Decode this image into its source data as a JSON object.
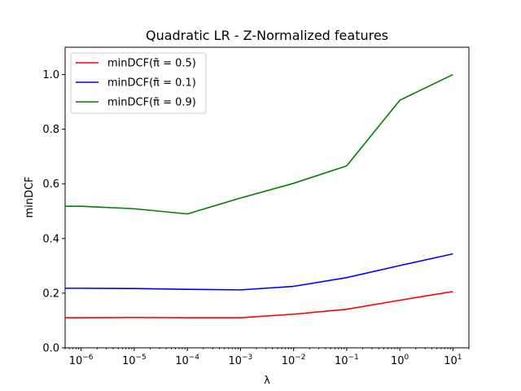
{
  "chart_data": {
    "type": "line",
    "title": "Quadratic LR - Z-Normalized features",
    "xlabel": "λ",
    "ylabel": "minDCF",
    "xscale": "log",
    "xlim": [
      5e-07,
      20
    ],
    "ylim": [
      0,
      1.1
    ],
    "grid": false,
    "legend_position": "top-left",
    "x": [
      5e-07,
      1e-06,
      1e-05,
      0.0001,
      0.001,
      0.01,
      0.1,
      1,
      10
    ],
    "series": [
      {
        "name": "minDCF(π̃ = 0.5)",
        "color": "#ff0000",
        "values": [
          0.11,
          0.11,
          0.111,
          0.11,
          0.11,
          0.123,
          0.141,
          0.174,
          0.206
        ]
      },
      {
        "name": "minDCF(π̃ = 0.1)",
        "color": "#0000ff",
        "values": [
          0.218,
          0.218,
          0.217,
          0.214,
          0.212,
          0.225,
          0.257,
          0.301,
          0.344
        ]
      },
      {
        "name": "minDCF(π̃ = 0.9)",
        "color": "#008000",
        "values": [
          0.518,
          0.518,
          0.509,
          0.49,
          0.548,
          0.602,
          0.666,
          0.906,
          1.0
        ]
      }
    ],
    "x_ticks": [
      {
        "value": 1e-06,
        "base": "10",
        "exp": "−6"
      },
      {
        "value": 1e-05,
        "base": "10",
        "exp": "−5"
      },
      {
        "value": 0.0001,
        "base": "10",
        "exp": "−4"
      },
      {
        "value": 0.001,
        "base": "10",
        "exp": "−3"
      },
      {
        "value": 0.01,
        "base": "10",
        "exp": "−2"
      },
      {
        "value": 0.1,
        "base": "10",
        "exp": "−1"
      },
      {
        "value": 1,
        "base": "10",
        "exp": "0"
      },
      {
        "value": 10,
        "base": "10",
        "exp": "1"
      }
    ],
    "y_ticks": [
      {
        "value": 0.0,
        "label": "0.0"
      },
      {
        "value": 0.2,
        "label": "0.2"
      },
      {
        "value": 0.4,
        "label": "0.4"
      },
      {
        "value": 0.6,
        "label": "0.6"
      },
      {
        "value": 0.8,
        "label": "0.8"
      },
      {
        "value": 1.0,
        "label": "1.0"
      }
    ]
  }
}
